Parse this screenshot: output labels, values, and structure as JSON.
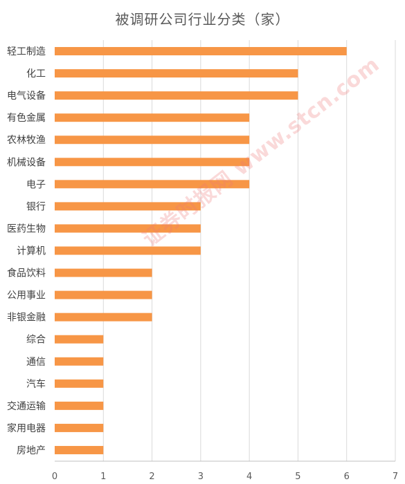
{
  "chart_data": {
    "type": "bar",
    "orientation": "horizontal",
    "title": "被调研公司行业分类（家）",
    "categories": [
      "轻工制造",
      "化工",
      "电气设备",
      "有色金属",
      "农林牧渔",
      "机械设备",
      "电子",
      "银行",
      "医药生物",
      "计算机",
      "食品饮料",
      "公用事业",
      "非银金融",
      "综合",
      "通信",
      "汽车",
      "交通运输",
      "家用电器",
      "房地产"
    ],
    "values": [
      6,
      5,
      5,
      4,
      4,
      4,
      4,
      3,
      3,
      3,
      2,
      2,
      2,
      1,
      1,
      1,
      1,
      1,
      1
    ],
    "xlim": [
      0,
      7
    ],
    "xticks": [
      0,
      1,
      2,
      3,
      4,
      5,
      6,
      7
    ],
    "grid": true,
    "legend": "none",
    "bar_color": "#F79646",
    "grid_color": "#D9D9D9",
    "axis_color": "#BFBFBF"
  },
  "watermark": "证券时报网 www.stcn.com"
}
